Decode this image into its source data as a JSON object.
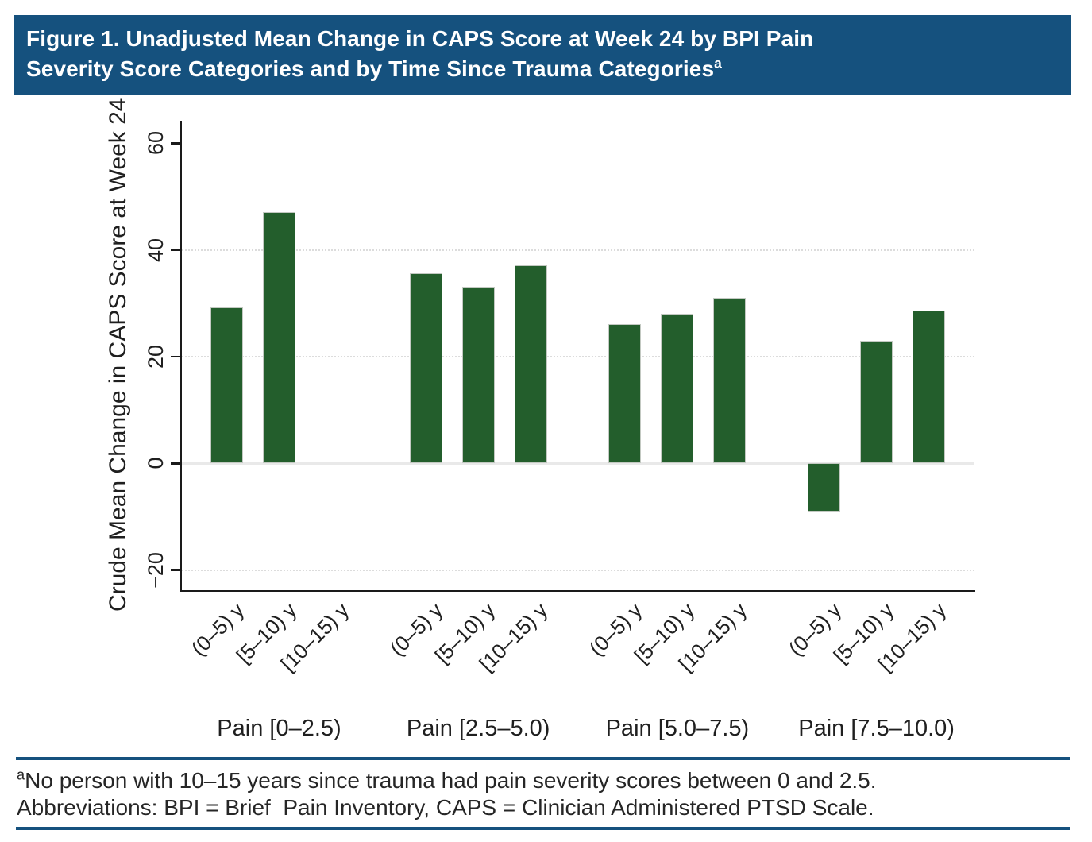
{
  "figure": {
    "title_line1": "Figure 1. Unadjusted Mean Change in CAPS Score at Week 24 by BPI Pain",
    "title_line2": "Severity Score Categories and by Time Since Trauma Categories",
    "title_superscript": "a",
    "header_bg_color": "#15517E",
    "rule_color": "#15517E"
  },
  "chart_data": {
    "type": "bar",
    "title": "",
    "xlabel": "",
    "ylabel": "Crude Mean Change in CAPS Score at Week 24",
    "ylim": [
      -24,
      64
    ],
    "yticks": [
      60,
      40,
      20,
      0,
      -20
    ],
    "ytick_labels": [
      "60",
      "40",
      "20",
      "0",
      "−20"
    ],
    "grid": "horizontal dotted lines at -20, 20, 40; solid light gray line at 0; no legend",
    "legend": "none",
    "bar_color": "#235E2C",
    "categories": [
      "Pain [0–2.5)",
      "Pain [2.5–5.0)",
      "Pain [5.0–7.5)",
      "Pain [7.5–10.0)"
    ],
    "subcategories": [
      "(0–5) y",
      "[5–10) y",
      "[10–15) y"
    ],
    "series": [
      {
        "name": "Pain [0–2.5)",
        "values": [
          29.3,
          47.1,
          null
        ]
      },
      {
        "name": "Pain [2.5–5.0)",
        "values": [
          35.7,
          33.1,
          37.1
        ]
      },
      {
        "name": "Pain [5.0–7.5)",
        "values": [
          26.1,
          28.0,
          31.0
        ]
      },
      {
        "name": "Pain [7.5–10.0)",
        "values": [
          -9.0,
          22.9,
          28.7
        ]
      }
    ]
  },
  "footnotes": {
    "superscript": "a",
    "line1": "No person with 10–15 years since trauma had pain severity scores between 0 and 2.5.",
    "line2": "Abbreviations: BPI = Brief  Pain Inventory, CAPS = Clinician Administered PTSD Scale."
  }
}
